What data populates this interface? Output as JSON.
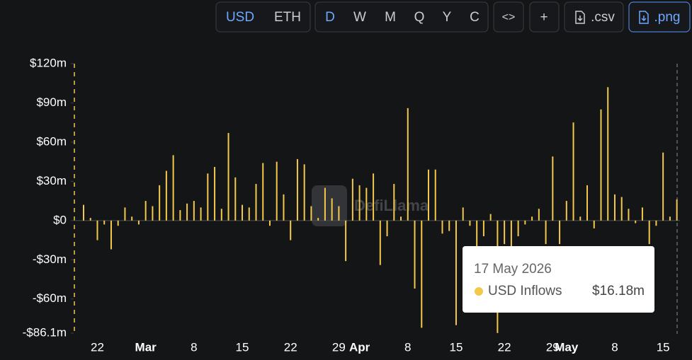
{
  "toolbar": {
    "currency": [
      "USD",
      "ETH"
    ],
    "periods": [
      "D",
      "W",
      "M",
      "Q",
      "Y",
      "C"
    ],
    "embed": "<>",
    "add": "+",
    "csv": ".csv",
    "png": ".png"
  },
  "watermark": "DefiLlama",
  "chart_data": {
    "type": "bar",
    "categories": [
      null,
      null,
      "22",
      null,
      null,
      null,
      null,
      null,
      null,
      "Mar",
      null,
      null,
      null,
      null,
      null,
      null,
      "8",
      null,
      null,
      null,
      null,
      null,
      null,
      "15",
      null,
      null,
      null,
      null,
      null,
      null,
      "22",
      null,
      null,
      null,
      null,
      null,
      null,
      "29",
      null,
      null,
      "Apr",
      null,
      null,
      null,
      null,
      null,
      null,
      "8",
      null,
      null,
      null,
      null,
      null,
      null,
      "15",
      null,
      null,
      null,
      null,
      null,
      null,
      "22",
      null,
      null,
      null,
      null,
      null,
      null,
      "29",
      null,
      "May",
      null,
      null,
      null,
      null,
      null,
      null,
      "8",
      null,
      null,
      null,
      null,
      null,
      null,
      "15",
      null,
      null
    ],
    "series": [
      {
        "name": "USD Inflows",
        "color": "#f2c94c",
        "values": [
          12,
          2,
          -15,
          -3,
          -22,
          -4,
          10,
          3,
          -3,
          15,
          11,
          27,
          38,
          50,
          8,
          13,
          15,
          10,
          36,
          41,
          9,
          67,
          33,
          12,
          10,
          28,
          44,
          -4,
          45,
          20,
          -15,
          47,
          43,
          11,
          2,
          25,
          17,
          11,
          -31,
          32,
          27,
          25,
          36,
          -34,
          -12,
          28,
          3,
          86,
          -52,
          -82,
          39,
          39,
          -10,
          -8,
          -80,
          10,
          -4,
          -20,
          -12,
          5,
          -86,
          -18,
          -30,
          -12,
          -3,
          3,
          9,
          -18,
          49,
          -18,
          15,
          75,
          3,
          27,
          -6,
          85,
          102,
          20,
          18,
          9,
          -2,
          10,
          -18,
          -4,
          52,
          3,
          16.18
        ],
        "value_labels": [
          null,
          null,
          null,
          null,
          null,
          null,
          null,
          null,
          null,
          null,
          null,
          null,
          null,
          null,
          null,
          null,
          null,
          null,
          null,
          null,
          null,
          null,
          null,
          null,
          null,
          null,
          null,
          null,
          null,
          null,
          null,
          null,
          null,
          null,
          null,
          null,
          null,
          null,
          null,
          null,
          null,
          null,
          null,
          null,
          null,
          null,
          null,
          null,
          null,
          null,
          null,
          null,
          null,
          null,
          null,
          null,
          null,
          null,
          null,
          null,
          null,
          null,
          null,
          null,
          null,
          null,
          null,
          null,
          null,
          null,
          null,
          null,
          null,
          null,
          null,
          null,
          null,
          null,
          null,
          null,
          null,
          null,
          null,
          null,
          null,
          null,
          "$16.18m"
        ]
      }
    ],
    "ylim": [
      -86.1,
      120
    ],
    "yticks": [
      {
        "value": 120,
        "label": "$120m"
      },
      {
        "value": 90,
        "label": "$90m"
      },
      {
        "value": 60,
        "label": "$60m"
      },
      {
        "value": 30,
        "label": "$30m"
      },
      {
        "value": 0,
        "label": "$0"
      },
      {
        "value": -30,
        "label": "-$30m"
      },
      {
        "value": -60,
        "label": "-$60m"
      },
      {
        "value": -86.1,
        "label": "-$86.1m"
      }
    ],
    "grid": false,
    "tooltip": {
      "date": "17 May 2026",
      "index": 86
    }
  }
}
